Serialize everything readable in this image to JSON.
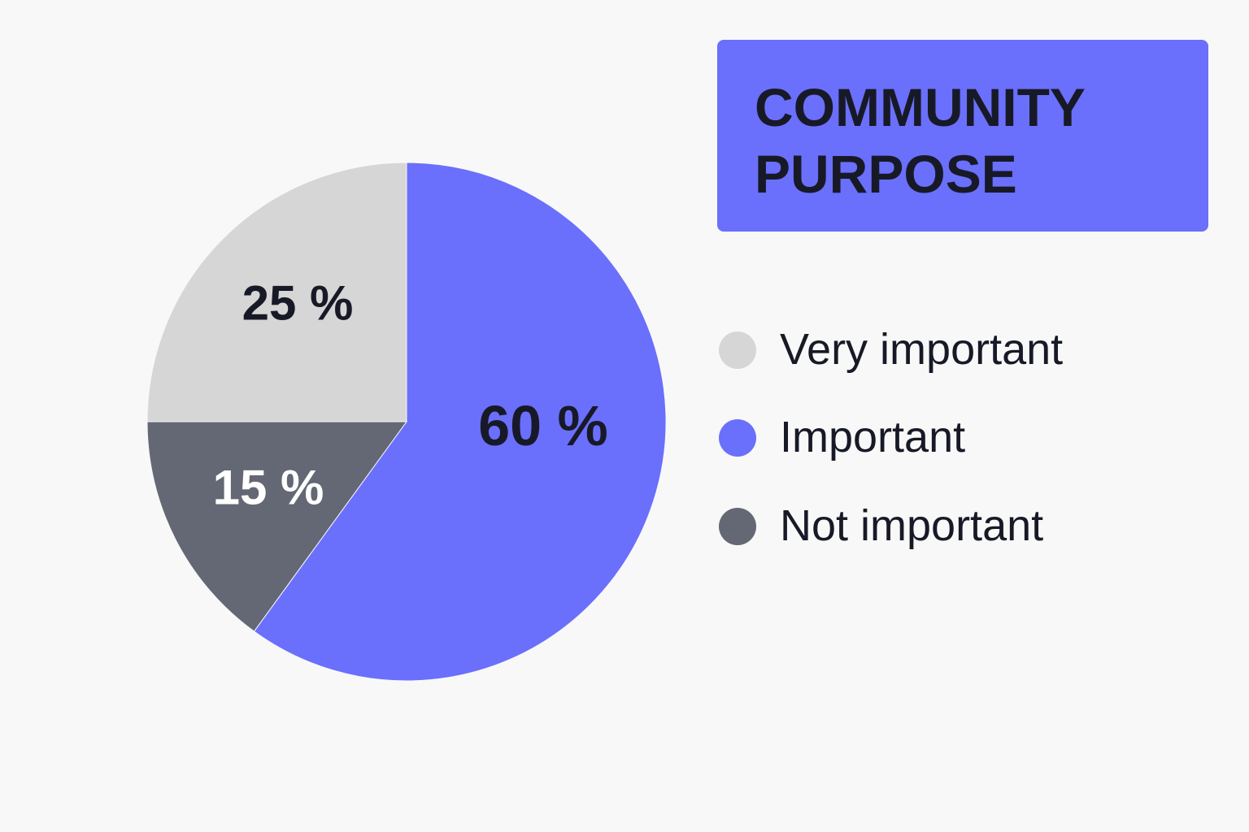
{
  "title": {
    "line1": "COMMUNITY",
    "line2": "PURPOSE",
    "background": "#6a6ffc"
  },
  "legend": {
    "items": [
      {
        "label": "Very important",
        "color": "#d6d6d6"
      },
      {
        "label": "Important",
        "color": "#6a6ffc"
      },
      {
        "label": "Not important",
        "color": "#636874"
      }
    ]
  },
  "slices": [
    {
      "label": "60 %",
      "name": "Important",
      "value": 60,
      "color": "#6a6ffc",
      "text_color": "#171a26"
    },
    {
      "label": "15 %",
      "name": "Not important",
      "value": 15,
      "color": "#636874",
      "text_color": "#ffffff"
    },
    {
      "label": "25 %",
      "name": "Very important",
      "value": 25,
      "color": "#d6d6d6",
      "text_color": "#171a26"
    }
  ],
  "chart_data": {
    "type": "pie",
    "title": "COMMUNITY PURPOSE",
    "categories": [
      "Important",
      "Not important",
      "Very important"
    ],
    "values": [
      60,
      15,
      25
    ],
    "unit": "%",
    "colors": [
      "#6a6ffc",
      "#636874",
      "#d6d6d6"
    ],
    "legend": [
      "Very important",
      "Important",
      "Not important"
    ],
    "legend_position": "right",
    "start_angle": "12 o'clock, clockwise"
  }
}
